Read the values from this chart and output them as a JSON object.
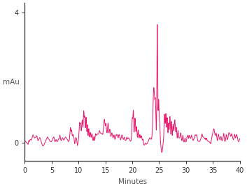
{
  "line_color": "#e8186d",
  "line_width": 0.7,
  "xlabel": "Minutes",
  "ylabel": "mAu",
  "xlim": [
    0,
    40
  ],
  "ylim": [
    -0.55,
    4.3
  ],
  "yticks": [
    0,
    4
  ],
  "xticks": [
    0,
    5,
    10,
    15,
    20,
    25,
    30,
    35,
    40
  ],
  "background": "#ffffff",
  "figsize": [
    3.53,
    2.7
  ],
  "dpi": 100
}
